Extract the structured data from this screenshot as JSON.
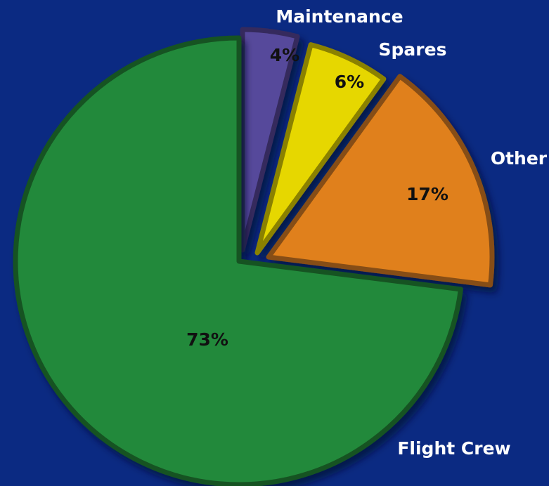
{
  "chart_data": {
    "type": "pie",
    "categories": [
      "Maintenance",
      "Spares",
      "Other",
      "Flight Crew"
    ],
    "values": [
      4,
      6,
      17,
      73
    ],
    "value_labels": [
      "4%",
      "6%",
      "17%",
      "73%"
    ],
    "colors": [
      "#57499b",
      "#e6d700",
      "#e0801e",
      "#23893a"
    ]
  }
}
